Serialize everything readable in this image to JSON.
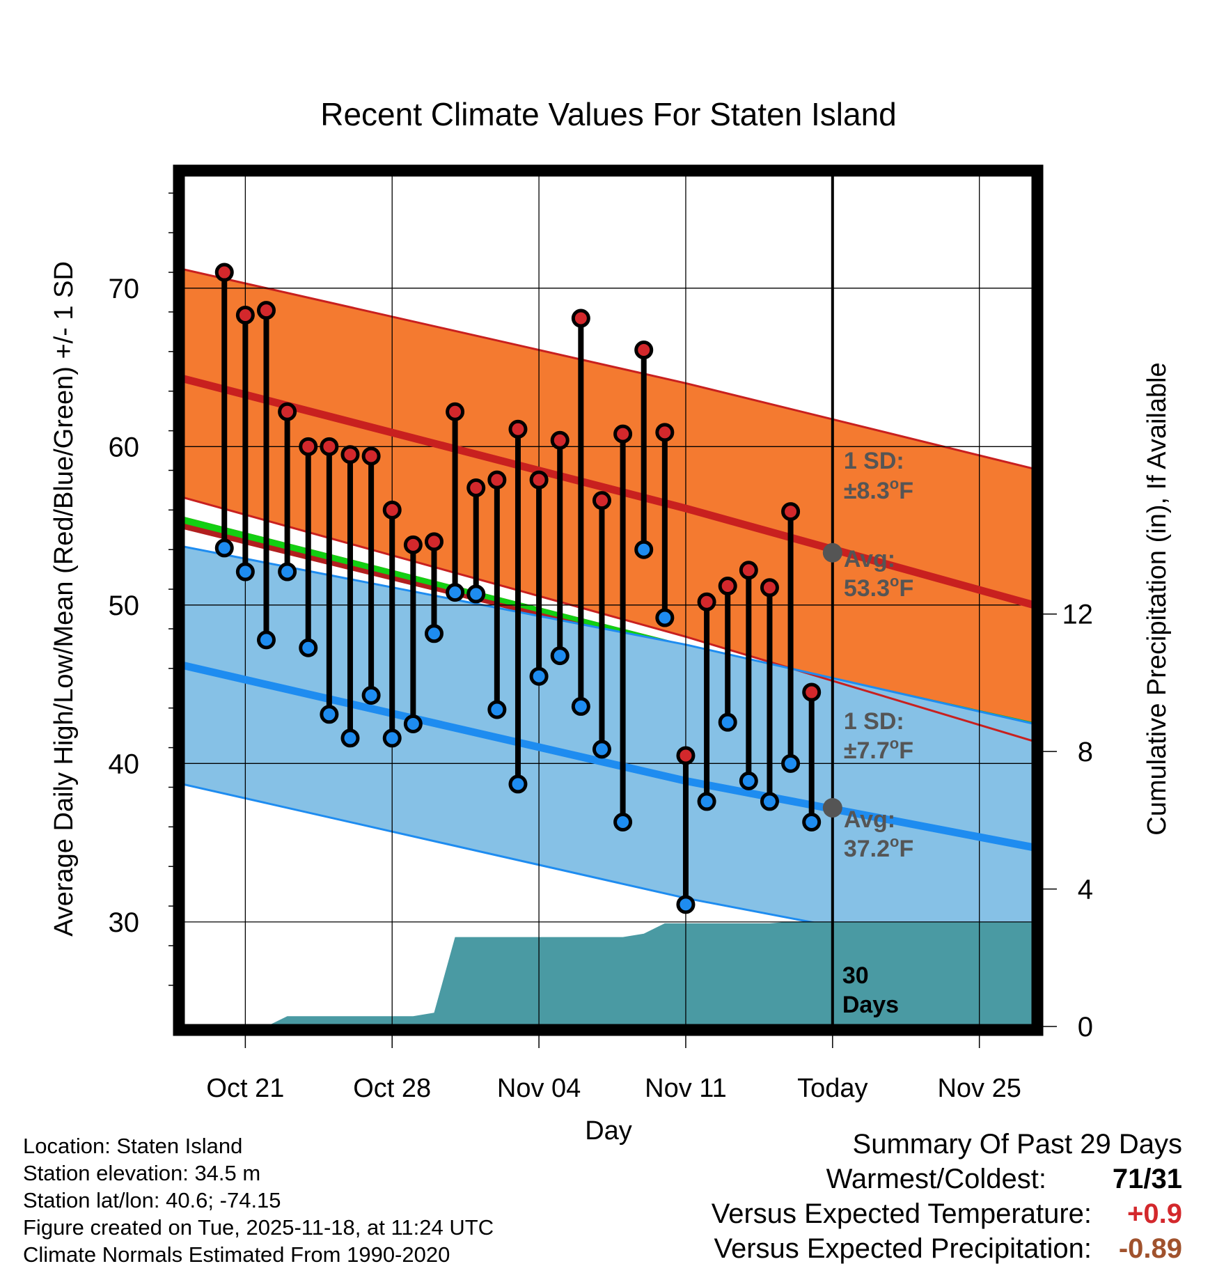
{
  "chart_data": {
    "type": "line",
    "title": "Recent Climate Values For Staten Island",
    "xlabel": "Day",
    "ylabel": "Average Daily High/Low/Mean (Red/Blue/Green) +/- 1 SD",
    "y2label": "Cumulative Precipitation (in), If Available",
    "x_start_offset": -2.0,
    "x_end_offset": 38.6,
    "today_offset": 29,
    "ylim": [
      23.4,
      77.2
    ],
    "y_ticks": [
      "30",
      "40",
      "50",
      "60",
      "70"
    ],
    "y_tick_values": [
      30,
      40,
      50,
      60,
      70
    ],
    "y2lim": [
      0,
      24.8
    ],
    "y2_ticks": [
      "0",
      "4",
      "8",
      "12"
    ],
    "y2_tick_values": [
      0,
      4,
      8,
      12
    ],
    "x_tick_labels": [
      "Oct 21",
      "Oct 28",
      "Nov 04",
      "Nov 11",
      "Today",
      "Nov 25"
    ],
    "x_tick_offsets": [
      1,
      8,
      15,
      22,
      29,
      36
    ],
    "normals": {
      "x": [
        -2,
        22,
        38.6
      ],
      "high_mean": [
        64.3,
        56.1,
        50.0
      ],
      "high_upper": [
        71.2,
        64.0,
        58.6
      ],
      "high_lower": [
        56.8,
        48.0,
        41.4
      ],
      "low_mean": [
        46.2,
        38.9,
        34.7
      ],
      "low_upper": [
        53.7,
        47.5,
        42.5
      ],
      "low_lower": [
        38.7,
        31.5,
        27.3
      ],
      "mean_upper": [
        55.6,
        47.5,
        42.6
      ],
      "mean_lower": [
        54.8,
        47.0,
        41.5
      ]
    },
    "series": [
      {
        "name": "Daily High",
        "x": [
          0,
          1,
          2,
          3,
          4,
          5,
          6,
          7,
          8,
          9,
          10,
          11,
          12,
          13,
          14,
          15,
          16,
          17,
          18,
          19,
          20,
          21,
          22,
          23,
          24,
          25,
          26,
          27,
          28
        ],
        "values": [
          71.0,
          68.3,
          68.6,
          62.2,
          60.0,
          60.0,
          59.5,
          59.4,
          56.0,
          53.8,
          54.0,
          62.2,
          57.4,
          57.9,
          61.1,
          57.9,
          60.4,
          68.1,
          56.6,
          60.8,
          66.1,
          60.9,
          40.5,
          50.2,
          51.2,
          52.2,
          51.1,
          55.9,
          44.5
        ]
      },
      {
        "name": "Daily Low",
        "x": [
          0,
          1,
          2,
          3,
          4,
          5,
          6,
          7,
          8,
          9,
          10,
          11,
          12,
          13,
          14,
          15,
          16,
          17,
          18,
          19,
          20,
          21,
          22,
          23,
          24,
          25,
          26,
          27,
          28
        ],
        "values": [
          53.6,
          52.1,
          47.8,
          52.1,
          47.3,
          43.1,
          41.6,
          44.3,
          41.6,
          42.5,
          48.2,
          50.8,
          50.7,
          43.4,
          38.7,
          45.5,
          46.8,
          43.6,
          40.9,
          36.3,
          53.5,
          49.2,
          31.1,
          37.6,
          42.6,
          38.9,
          37.6,
          40.0,
          36.3
        ]
      },
      {
        "name": "Cumulative Precipitation",
        "x": [
          0,
          1,
          2,
          3,
          4,
          5,
          6,
          7,
          8,
          9,
          10,
          11,
          12,
          13,
          14,
          15,
          16,
          17,
          18,
          19,
          20,
          21,
          22,
          23,
          24,
          25,
          26,
          27,
          28,
          29,
          38.6
        ],
        "values": [
          0,
          0,
          0,
          0.3,
          0.3,
          0.3,
          0.3,
          0.3,
          0.3,
          0.3,
          0.4,
          2.6,
          2.6,
          2.6,
          2.6,
          2.6,
          2.6,
          2.6,
          2.6,
          2.6,
          2.7,
          3.0,
          3.0,
          3.0,
          3.0,
          3.0,
          3.0,
          3.05,
          3.05,
          3.05,
          3.05
        ]
      }
    ],
    "annotations": {
      "high_sd_label": "1 SD:",
      "high_sd_value": "±8.3",
      "high_avg_label": "Avg:",
      "high_avg_value": "53.3",
      "high_avg": 53.3,
      "low_sd_label": "1 SD:",
      "low_sd_value": "±7.7",
      "low_avg_label": "Avg:",
      "low_avg_value": "37.2",
      "low_avg": 37.2,
      "deg_sup": "o",
      "unit_f": "F",
      "days_number": "30",
      "days_word": "Days"
    },
    "colors": {
      "high_band": "#f47a30",
      "high_line": "#c8201f",
      "low_band": "#86c1e6",
      "low_line": "#1e8cf0",
      "mean_band": "#12cf12",
      "mean_edge": "#b21f1f",
      "precip": "#4a9aa3",
      "high_marker": "#d3282c",
      "low_marker": "#1e8cf0",
      "annotation_text": "#555555",
      "avg_marker": "#555555"
    }
  },
  "footer": {
    "location": "Location: Staten Island",
    "elevation": "Station elevation: 34.5 m",
    "latlon": "Station lat/lon: 40.6; -74.15",
    "created": "Figure created on Tue, 2025-11-18, at 11:24 UTC",
    "normals": "Climate Normals Estimated From 1990-2020"
  },
  "summary": {
    "title": "Summary Of Past 29 Days",
    "warmest_label": "Warmest/Coldest:",
    "warmest_value": "71/31",
    "temp_label": "Versus Expected Temperature:",
    "temp_value": "+0.9",
    "temp_color": "#d3282c",
    "precip_label": "Versus Expected Precipitation:",
    "precip_value": "-0.89",
    "precip_color": "#a0522d"
  }
}
